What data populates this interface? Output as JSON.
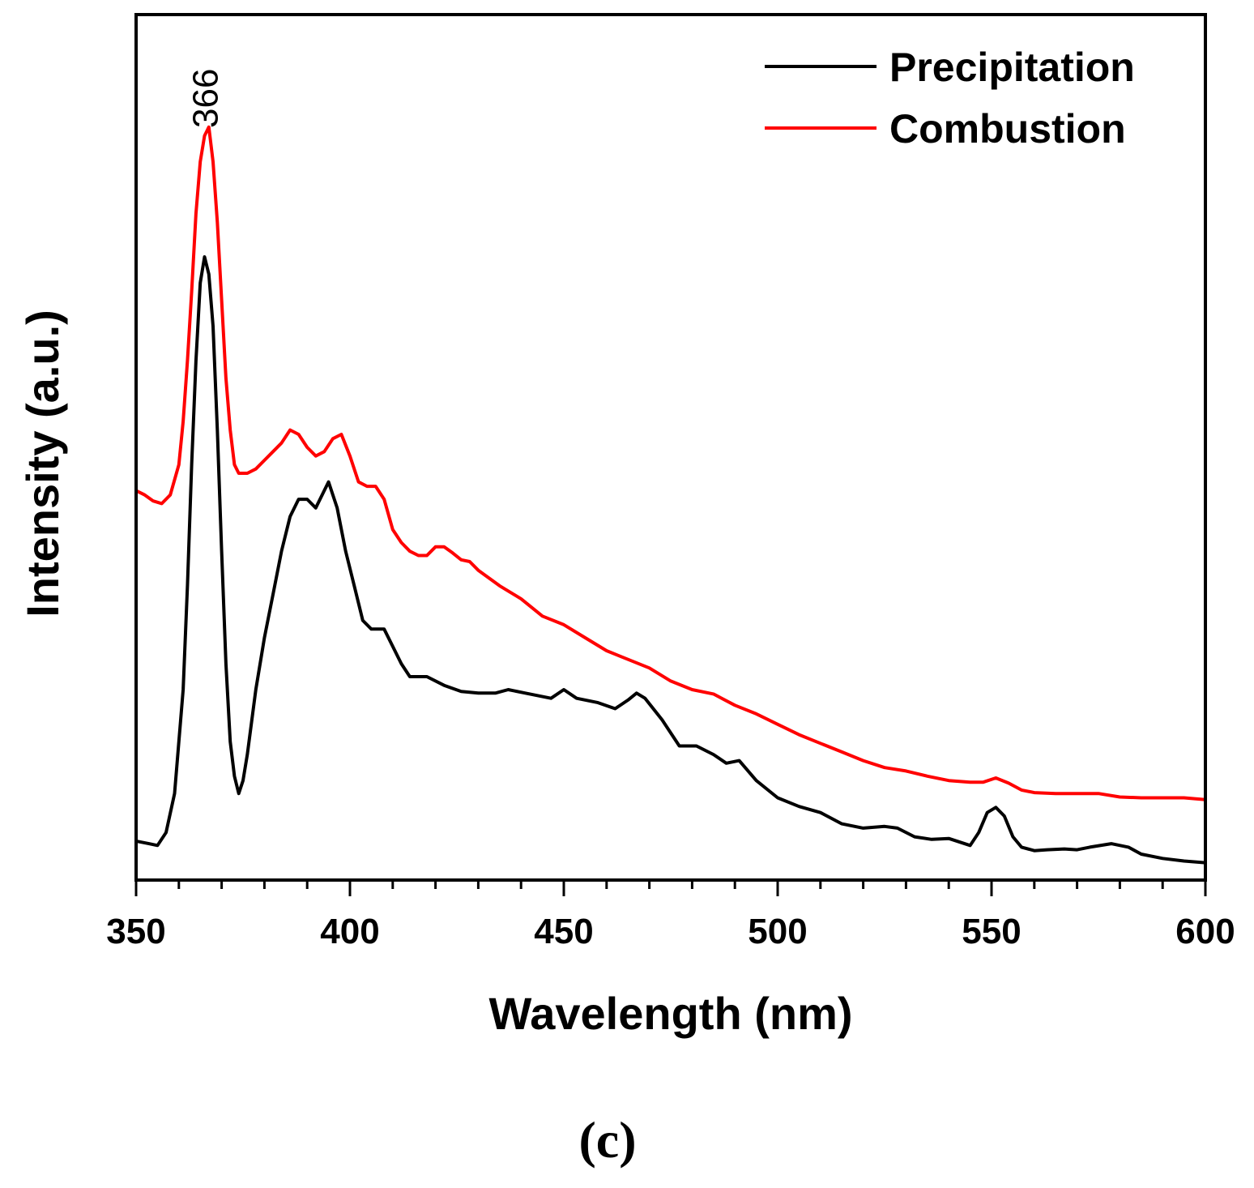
{
  "chart_data": {
    "type": "line",
    "xlabel": "Wavelength (nm)",
    "ylabel": "Intensity (a.u.)",
    "xlim": [
      350,
      600
    ],
    "ylim": [
      0,
      100
    ],
    "xticks": [
      "350",
      "400",
      "450",
      "500",
      "550",
      "600"
    ],
    "y_ticks_shown": false,
    "legend_position": "top-right",
    "annotation": "366",
    "annotation_x": 366,
    "panel_label": "(c)",
    "series": [
      {
        "name": "Precipitation",
        "color": "#000000",
        "x": [
          350,
          353,
          355,
          357,
          359,
          361,
          362,
          363,
          364,
          365,
          366,
          367,
          368,
          369,
          370,
          371,
          372,
          373,
          374,
          375,
          376,
          378,
          380,
          382,
          384,
          386,
          388,
          390,
          392,
          394,
          395,
          397,
          399,
          401,
          403,
          405,
          408,
          410,
          412,
          414,
          418,
          422,
          426,
          430,
          434,
          437,
          441,
          445,
          447,
          450,
          453,
          458,
          462,
          465,
          467,
          469,
          473,
          477,
          481,
          485,
          488,
          491,
          495,
          500,
          505,
          510,
          515,
          520,
          525,
          528,
          532,
          536,
          540,
          545,
          547,
          549,
          551,
          553,
          555,
          557,
          560,
          563,
          567,
          570,
          573,
          578,
          582,
          585,
          590,
          595,
          600
        ],
        "y": [
          4.5,
          4.2,
          4.0,
          5.5,
          10,
          22,
          34,
          48,
          60,
          69,
          72,
          70,
          64,
          52,
          38,
          25,
          16,
          12,
          10,
          11.5,
          14.5,
          22,
          28,
          33,
          38,
          42,
          44,
          44,
          43,
          45,
          46,
          43,
          38,
          34,
          30,
          29,
          29,
          27,
          25,
          23.5,
          23.5,
          22.5,
          21.8,
          21.6,
          21.6,
          22,
          21.6,
          21.2,
          21,
          22,
          21,
          20.5,
          19.8,
          20.8,
          21.6,
          21,
          18.5,
          15.5,
          15.5,
          14.5,
          13.5,
          13.8,
          11.5,
          9.5,
          8.5,
          7.8,
          6.5,
          6.0,
          6.2,
          6.0,
          5.0,
          4.7,
          4.8,
          4.0,
          5.5,
          7.8,
          8.4,
          7.4,
          5.0,
          3.8,
          3.4,
          3.5,
          3.6,
          3.5,
          3.8,
          4.2,
          3.8,
          3.0,
          2.5,
          2.2,
          2.0
        ]
      },
      {
        "name": "Combustion",
        "color": "#ff0000",
        "x": [
          350,
          352,
          354,
          356,
          358,
          360,
          361,
          362,
          363,
          364,
          365,
          366,
          367,
          368,
          369,
          370,
          371,
          372,
          373,
          374,
          375,
          376,
          378,
          380,
          382,
          384,
          386,
          388,
          390,
          392,
          394,
          396,
          398,
          400,
          402,
          404,
          406,
          408,
          410,
          412,
          414,
          416,
          418,
          420,
          422,
          424,
          426,
          428,
          430,
          435,
          440,
          445,
          450,
          455,
          460,
          465,
          470,
          475,
          480,
          485,
          490,
          495,
          500,
          505,
          510,
          515,
          520,
          525,
          530,
          535,
          540,
          545,
          548,
          551,
          554,
          557,
          560,
          565,
          570,
          575,
          580,
          585,
          590,
          595,
          600
        ],
        "y": [
          45,
          44.5,
          43.8,
          43.5,
          44.5,
          48,
          53,
          60,
          68,
          77,
          83,
          86,
          87,
          83,
          76,
          67,
          58,
          52,
          48,
          47,
          47,
          47,
          47.5,
          48.5,
          49.5,
          50.5,
          52,
          51.5,
          50,
          49,
          49.5,
          51,
          51.5,
          49,
          46,
          45.5,
          45.5,
          44,
          40.5,
          39,
          38,
          37.5,
          37.5,
          38.5,
          38.5,
          37.8,
          37,
          36.8,
          35.8,
          34,
          32.5,
          30.5,
          29.5,
          28,
          26.5,
          25.5,
          24.5,
          23,
          22,
          21.5,
          20.2,
          19.2,
          18,
          16.8,
          15.8,
          14.8,
          13.8,
          13,
          12.6,
          12,
          11.5,
          11.3,
          11.3,
          11.8,
          11.2,
          10.4,
          10.1,
          10.0,
          10.0,
          10.0,
          9.6,
          9.5,
          9.5,
          9.5,
          9.3
        ]
      }
    ]
  }
}
